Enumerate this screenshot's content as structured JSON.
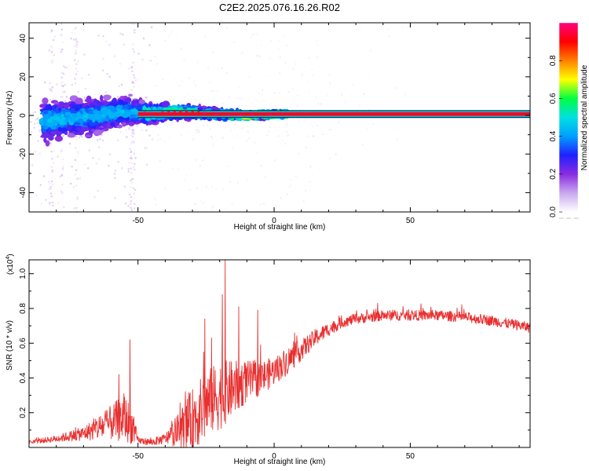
{
  "title": "C2E2.2025.076.16.26.R02",
  "colors": {
    "background": "#ffffff",
    "frame": "#000000",
    "snr_line": "#e83030",
    "band_line": "#111111",
    "colormap": [
      "#ffffff",
      "#c9a9ee",
      "#8a2be2",
      "#2020ff",
      "#00a0ff",
      "#00e0e0",
      "#00ff40",
      "#ffff00",
      "#ff8000",
      "#ff0000",
      "#ff0080"
    ]
  },
  "chart_data": [
    {
      "type": "heatmap",
      "name": "spectrogram",
      "xlabel": "Height of straight line (km)",
      "ylabel": "Frequency (Hz)",
      "xlim": [
        -90,
        94
      ],
      "ylim": [
        -50,
        48
      ],
      "xticks": [
        -50,
        0,
        50
      ],
      "xtick_labels": [
        "-50",
        "0",
        "50"
      ],
      "yticks": [
        -40,
        -20,
        0,
        20,
        40
      ],
      "ytick_labels": [
        "-40",
        "-20",
        "0",
        "20",
        "40"
      ],
      "band": {
        "center": 0.7,
        "half_width": 1.8,
        "x_start": -50,
        "x_end": 94
      },
      "ridge": {
        "x": [
          -85,
          -80,
          -75,
          -70,
          -65,
          -60,
          -55,
          -50,
          -45,
          -40,
          -35,
          -30,
          -25,
          -20,
          -15,
          -10,
          -5,
          0,
          5
        ],
        "y": [
          -3,
          -2,
          -1.5,
          -1,
          0,
          1,
          2,
          1.5,
          1,
          1.5,
          2,
          1.8,
          1,
          0.5,
          0.3,
          0,
          0.3,
          0.5,
          0.6
        ],
        "spread": [
          14,
          13,
          12,
          12,
          11,
          11,
          10,
          8,
          6,
          5,
          4.5,
          4,
          3.5,
          3,
          3,
          2.5,
          2.5,
          2.2,
          2
        ]
      },
      "colorbar": {
        "label": "Normalized spectral amplitude",
        "range": [
          0,
          1
        ],
        "ticks": [
          0.0,
          0.2,
          0.4,
          0.6,
          0.8
        ],
        "tick_labels": [
          "0.0",
          "0.2",
          "0.4",
          "0.6",
          "0.8"
        ]
      }
    },
    {
      "type": "line",
      "name": "snr",
      "xlabel": "Height of straight line (km)",
      "ylabel": "SNR (10 * v/v)",
      "scale_label": "(x10",
      "scale_exponent": "4",
      "scale_close": ")",
      "xlim": [
        -90,
        94
      ],
      "ylim": [
        0,
        1.08
      ],
      "xticks": [
        -50,
        0,
        50
      ],
      "xtick_labels": [
        "-50",
        "0",
        "50"
      ],
      "yticks": [
        0.2,
        0.4,
        0.6,
        0.8,
        1.0
      ],
      "ytick_labels": [
        "0.2",
        "0.4",
        "0.6",
        "0.8",
        "1.0"
      ],
      "series": [
        {
          "name": "SNR",
          "envelope_x": [
            -90,
            -80,
            -70,
            -60,
            -55,
            -52,
            -50,
            -45,
            -40,
            -35,
            -30,
            -25,
            -20,
            -15,
            -10,
            -5,
            0,
            5,
            10,
            15,
            20,
            25,
            30,
            35,
            40,
            50,
            60,
            70,
            80,
            94
          ],
          "envelope_y": [
            0.03,
            0.05,
            0.08,
            0.14,
            0.17,
            0.12,
            0.04,
            0.03,
            0.05,
            0.1,
            0.16,
            0.24,
            0.3,
            0.34,
            0.38,
            0.4,
            0.44,
            0.5,
            0.56,
            0.63,
            0.68,
            0.72,
            0.74,
            0.75,
            0.76,
            0.76,
            0.76,
            0.75,
            0.73,
            0.69
          ],
          "noise": [
            0.01,
            0.02,
            0.04,
            0.1,
            0.14,
            0.1,
            0.02,
            0.02,
            0.03,
            0.1,
            0.18,
            0.2,
            0.2,
            0.16,
            0.12,
            0.1,
            0.08,
            0.08,
            0.06,
            0.05,
            0.04,
            0.03,
            0.03,
            0.03,
            0.03,
            0.03,
            0.03,
            0.03,
            0.03,
            0.03
          ],
          "spikes": [
            {
              "x": -53,
              "y": 0.62
            },
            {
              "x": -57,
              "y": 0.42
            },
            {
              "x": -25.5,
              "y": 0.74
            },
            {
              "x": -23,
              "y": 0.63
            },
            {
              "x": -18,
              "y": 1.08
            },
            {
              "x": -19,
              "y": 0.88
            },
            {
              "x": -13,
              "y": 0.81
            },
            {
              "x": -6,
              "y": 0.79
            },
            {
              "x": 38,
              "y": 0.83
            }
          ]
        }
      ]
    }
  ]
}
